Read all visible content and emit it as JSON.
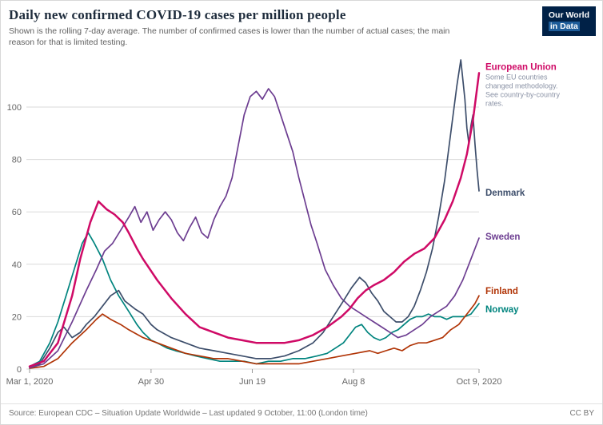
{
  "header": {
    "title": "Daily new confirmed COVID-19 cases per million people",
    "subtitle": "Shown is the rolling 7-day average. The number of confirmed cases is lower than the number of actual cases; the main reason for that is limited testing.",
    "logo": {
      "line1": "Our World",
      "line2": "in Data"
    }
  },
  "footer": {
    "source": "Source: European CDC – Situation Update Worldwide – Last updated 9 October, 11:00 (London time)",
    "license": "CC BY"
  },
  "colors": {
    "grid": "#d9d9d9",
    "axis_text": "#666666",
    "tick_mark": "#999999",
    "title": "#1f2d3d",
    "subtitle": "#616161",
    "annotation": "#8a92a5",
    "footer_text": "#757575",
    "logo_bg": "#002147"
  },
  "chart_data": {
    "type": "line",
    "title": "Daily new confirmed COVID-19 cases per million people",
    "subtitle": "Shown is the rolling 7-day average. The number of confirmed cases is lower than the number of actual cases; the main reason for that is limited testing.",
    "xlabel": "",
    "ylabel": "",
    "grid": true,
    "legend": "end-of-line labels",
    "x_unit": "days since Mar 1, 2020",
    "x_range_days": [
      0,
      222
    ],
    "x_ticks": [
      {
        "day": 0,
        "label": "Mar 1, 2020"
      },
      {
        "day": 60,
        "label": "Apr 30"
      },
      {
        "day": 110,
        "label": "Jun 19"
      },
      {
        "day": 160,
        "label": "Aug 8"
      },
      {
        "day": 222,
        "label": "Oct 9, 2020"
      }
    ],
    "y_ticks": [
      0,
      20,
      40,
      60,
      80,
      100
    ],
    "y_max": 120,
    "series": [
      {
        "name": "European Union",
        "color": "#cf0a66",
        "line_width": 2.5,
        "label_dy": -8,
        "annotation_lines": [
          "Some EU countries",
          "changed methodology.",
          "See country-by-country",
          "rates."
        ],
        "points": [
          [
            0,
            1
          ],
          [
            7,
            3
          ],
          [
            14,
            10
          ],
          [
            21,
            28
          ],
          [
            25,
            42
          ],
          [
            30,
            56
          ],
          [
            34,
            64
          ],
          [
            38,
            61
          ],
          [
            42,
            59
          ],
          [
            46,
            56
          ],
          [
            49,
            52
          ],
          [
            53,
            46
          ],
          [
            56,
            42
          ],
          [
            63,
            34
          ],
          [
            70,
            27
          ],
          [
            77,
            21
          ],
          [
            84,
            16
          ],
          [
            91,
            14
          ],
          [
            98,
            12
          ],
          [
            105,
            11
          ],
          [
            112,
            10
          ],
          [
            119,
            10
          ],
          [
            126,
            10
          ],
          [
            133,
            11
          ],
          [
            140,
            13
          ],
          [
            147,
            16
          ],
          [
            154,
            20
          ],
          [
            158,
            23
          ],
          [
            162,
            27
          ],
          [
            166,
            30
          ],
          [
            170,
            32
          ],
          [
            175,
            34
          ],
          [
            180,
            37
          ],
          [
            185,
            41
          ],
          [
            190,
            44
          ],
          [
            195,
            46
          ],
          [
            200,
            50
          ],
          [
            205,
            57
          ],
          [
            209,
            64
          ],
          [
            213,
            73
          ],
          [
            216,
            82
          ],
          [
            219,
            95
          ],
          [
            222,
            113
          ]
        ]
      },
      {
        "name": "Denmark",
        "color": "#3d4e6b",
        "line_width": 1.7,
        "label_dy": 2,
        "points": [
          [
            0,
            1
          ],
          [
            5,
            2
          ],
          [
            10,
            8
          ],
          [
            14,
            14
          ],
          [
            17,
            16
          ],
          [
            21,
            12
          ],
          [
            25,
            14
          ],
          [
            28,
            17
          ],
          [
            32,
            20
          ],
          [
            36,
            24
          ],
          [
            40,
            28
          ],
          [
            44,
            30
          ],
          [
            47,
            26
          ],
          [
            52,
            23
          ],
          [
            56,
            21
          ],
          [
            60,
            17
          ],
          [
            63,
            15
          ],
          [
            70,
            12
          ],
          [
            77,
            10
          ],
          [
            84,
            8
          ],
          [
            91,
            7
          ],
          [
            98,
            6
          ],
          [
            105,
            5
          ],
          [
            112,
            4
          ],
          [
            119,
            4
          ],
          [
            126,
            5
          ],
          [
            133,
            7
          ],
          [
            140,
            10
          ],
          [
            145,
            14
          ],
          [
            150,
            20
          ],
          [
            155,
            26
          ],
          [
            159,
            31
          ],
          [
            163,
            35
          ],
          [
            166,
            33
          ],
          [
            169,
            29
          ],
          [
            172,
            26
          ],
          [
            175,
            22
          ],
          [
            178,
            20
          ],
          [
            181,
            18
          ],
          [
            184,
            18
          ],
          [
            187,
            20
          ],
          [
            190,
            24
          ],
          [
            193,
            30
          ],
          [
            196,
            37
          ],
          [
            199,
            46
          ],
          [
            202,
            58
          ],
          [
            205,
            72
          ],
          [
            208,
            90
          ],
          [
            211,
            108
          ],
          [
            213,
            118
          ],
          [
            215,
            103
          ],
          [
            216,
            92
          ],
          [
            217,
            86
          ],
          [
            218,
            93
          ],
          [
            219,
            97
          ],
          [
            220,
            86
          ],
          [
            221,
            76
          ],
          [
            222,
            68
          ]
        ]
      },
      {
        "name": "Sweden",
        "color": "#6d3e91",
        "line_width": 1.7,
        "label_dy": -2,
        "points": [
          [
            0,
            0.5
          ],
          [
            7,
            2
          ],
          [
            14,
            7
          ],
          [
            21,
            18
          ],
          [
            28,
            30
          ],
          [
            33,
            38
          ],
          [
            37,
            45
          ],
          [
            41,
            48
          ],
          [
            45,
            53
          ],
          [
            49,
            58
          ],
          [
            52,
            62
          ],
          [
            55,
            56
          ],
          [
            58,
            60
          ],
          [
            61,
            53
          ],
          [
            64,
            57
          ],
          [
            67,
            60
          ],
          [
            70,
            57
          ],
          [
            73,
            52
          ],
          [
            76,
            49
          ],
          [
            79,
            54
          ],
          [
            82,
            58
          ],
          [
            85,
            52
          ],
          [
            88,
            50
          ],
          [
            91,
            57
          ],
          [
            94,
            62
          ],
          [
            97,
            66
          ],
          [
            100,
            73
          ],
          [
            103,
            85
          ],
          [
            106,
            97
          ],
          [
            109,
            104
          ],
          [
            112,
            106
          ],
          [
            115,
            103
          ],
          [
            118,
            107
          ],
          [
            121,
            104
          ],
          [
            124,
            97
          ],
          [
            127,
            90
          ],
          [
            130,
            83
          ],
          [
            133,
            73
          ],
          [
            136,
            64
          ],
          [
            139,
            55
          ],
          [
            142,
            48
          ],
          [
            146,
            38
          ],
          [
            150,
            32
          ],
          [
            154,
            27
          ],
          [
            158,
            24
          ],
          [
            162,
            22
          ],
          [
            166,
            20
          ],
          [
            170,
            18
          ],
          [
            174,
            16
          ],
          [
            178,
            14
          ],
          [
            182,
            12
          ],
          [
            186,
            13
          ],
          [
            190,
            15
          ],
          [
            194,
            17
          ],
          [
            198,
            20
          ],
          [
            202,
            22
          ],
          [
            206,
            24
          ],
          [
            210,
            28
          ],
          [
            214,
            34
          ],
          [
            218,
            42
          ],
          [
            222,
            50
          ]
        ]
      },
      {
        "name": "Finland",
        "color": "#b13507",
        "line_width": 1.7,
        "label_dy": -6,
        "points": [
          [
            0,
            0.3
          ],
          [
            7,
            1
          ],
          [
            14,
            4
          ],
          [
            21,
            10
          ],
          [
            28,
            15
          ],
          [
            33,
            19
          ],
          [
            36,
            21
          ],
          [
            40,
            19
          ],
          [
            45,
            17
          ],
          [
            49,
            15
          ],
          [
            56,
            12
          ],
          [
            63,
            10
          ],
          [
            70,
            8
          ],
          [
            77,
            6
          ],
          [
            84,
            5
          ],
          [
            91,
            4
          ],
          [
            98,
            4
          ],
          [
            105,
            3
          ],
          [
            112,
            2
          ],
          [
            119,
            2
          ],
          [
            126,
            2
          ],
          [
            133,
            2
          ],
          [
            140,
            3
          ],
          [
            147,
            4
          ],
          [
            154,
            5
          ],
          [
            161,
            6
          ],
          [
            168,
            7
          ],
          [
            172,
            6
          ],
          [
            176,
            7
          ],
          [
            180,
            8
          ],
          [
            184,
            7
          ],
          [
            188,
            9
          ],
          [
            192,
            10
          ],
          [
            196,
            10
          ],
          [
            200,
            11
          ],
          [
            204,
            12
          ],
          [
            208,
            15
          ],
          [
            212,
            17
          ],
          [
            215,
            20
          ],
          [
            218,
            23
          ],
          [
            220,
            25
          ],
          [
            222,
            28
          ]
        ]
      },
      {
        "name": "Norway",
        "color": "#00847e",
        "line_width": 1.7,
        "label_dy": 7,
        "points": [
          [
            0,
            1
          ],
          [
            5,
            3
          ],
          [
            10,
            10
          ],
          [
            14,
            18
          ],
          [
            18,
            28
          ],
          [
            22,
            38
          ],
          [
            26,
            48
          ],
          [
            29,
            52
          ],
          [
            32,
            48
          ],
          [
            36,
            42
          ],
          [
            40,
            34
          ],
          [
            44,
            28
          ],
          [
            49,
            22
          ],
          [
            53,
            17
          ],
          [
            56,
            14
          ],
          [
            60,
            11
          ],
          [
            63,
            10
          ],
          [
            68,
            8
          ],
          [
            72,
            7
          ],
          [
            77,
            6
          ],
          [
            82,
            5
          ],
          [
            88,
            4
          ],
          [
            94,
            3
          ],
          [
            100,
            3
          ],
          [
            106,
            3
          ],
          [
            112,
            2
          ],
          [
            118,
            3
          ],
          [
            124,
            3
          ],
          [
            130,
            4
          ],
          [
            136,
            4
          ],
          [
            142,
            5
          ],
          [
            147,
            6
          ],
          [
            151,
            8
          ],
          [
            155,
            10
          ],
          [
            158,
            13
          ],
          [
            161,
            16
          ],
          [
            164,
            17
          ],
          [
            167,
            14
          ],
          [
            170,
            12
          ],
          [
            173,
            11
          ],
          [
            176,
            12
          ],
          [
            179,
            14
          ],
          [
            182,
            15
          ],
          [
            185,
            17
          ],
          [
            188,
            19
          ],
          [
            191,
            20
          ],
          [
            194,
            20
          ],
          [
            197,
            21
          ],
          [
            200,
            20
          ],
          [
            203,
            20
          ],
          [
            206,
            19
          ],
          [
            209,
            20
          ],
          [
            212,
            20
          ],
          [
            215,
            20
          ],
          [
            218,
            21
          ],
          [
            220,
            23
          ],
          [
            222,
            25
          ]
        ]
      }
    ]
  }
}
